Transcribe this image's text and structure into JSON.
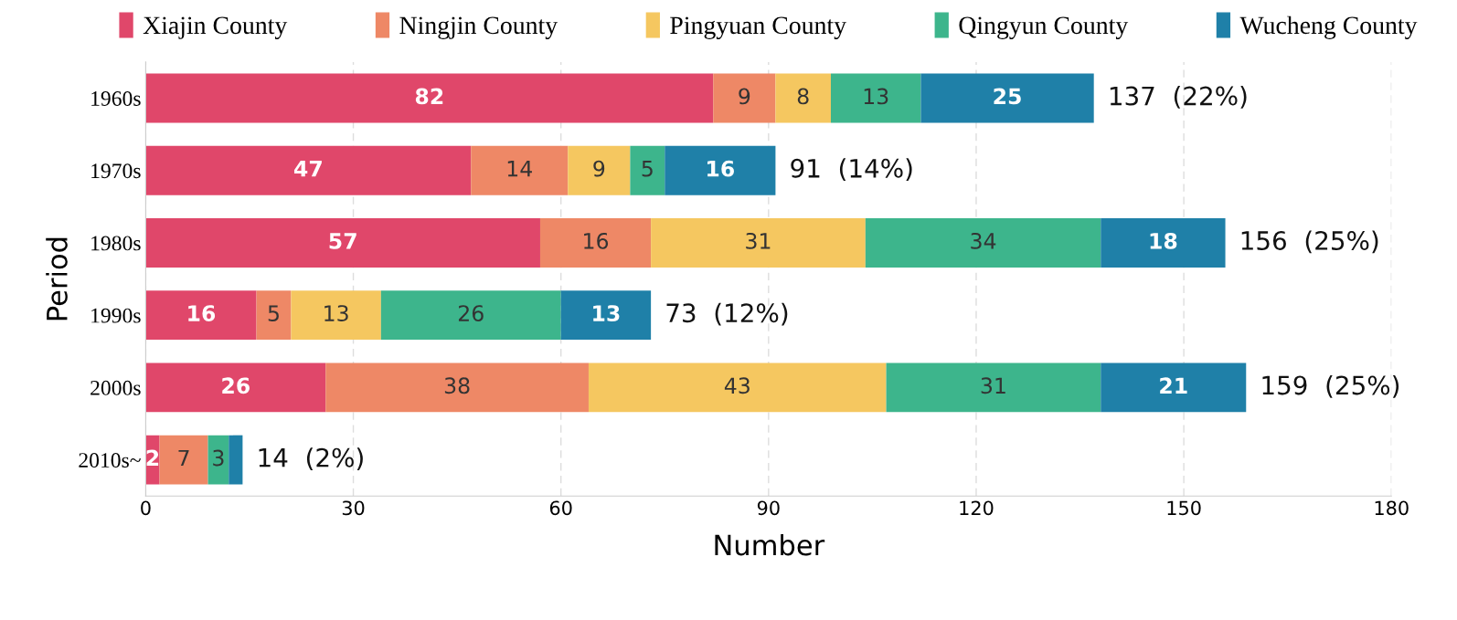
{
  "chart_data": {
    "type": "bar",
    "orientation": "horizontal",
    "stacked": true,
    "xlabel": "Number",
    "ylabel": "Period",
    "categories": [
      "1960s",
      "1970s",
      "1980s",
      "1990s",
      "2000s",
      "2010s~"
    ],
    "series": [
      {
        "name": "Xiajin County",
        "color": "#e0476a",
        "values": [
          82,
          47,
          57,
          16,
          26,
          2
        ]
      },
      {
        "name": "Ningjin County",
        "color": "#ee8866",
        "values": [
          9,
          14,
          16,
          5,
          38,
          7
        ]
      },
      {
        "name": "Pingyuan County",
        "color": "#f5c760",
        "values": [
          8,
          9,
          31,
          13,
          43,
          0
        ],
        "value_labels": [
          "8",
          "9",
          "31",
          "13",
          "43",
          null
        ]
      },
      {
        "name": "Qingyun County",
        "color": "#3db58c",
        "values": [
          13,
          5,
          34,
          26,
          31,
          3
        ]
      },
      {
        "name": "Wucheng County",
        "color": "#1f80a8",
        "values": [
          25,
          16,
          18,
          13,
          21,
          2
        ],
        "value_labels": [
          "25",
          "16",
          "18",
          "13",
          "21",
          null
        ]
      }
    ],
    "totals": [
      "137  (22%)",
      "91  (14%)",
      "156  (25%)",
      "73  (12%)",
      "159  (25%)",
      "14  (2%)"
    ],
    "xlim": [
      0,
      180
    ],
    "xticks": [
      0,
      30,
      60,
      90,
      120,
      150,
      180
    ],
    "grid": "x",
    "legend": "top",
    "data_labels": true
  }
}
